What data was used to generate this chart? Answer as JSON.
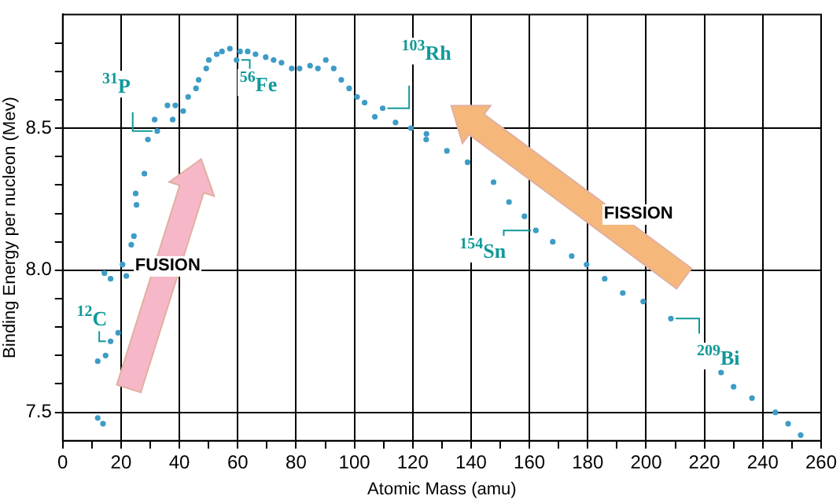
{
  "chart_data": {
    "type": "scatter",
    "xlabel": "Atomic Mass (amu)",
    "ylabel": "Binding Energy per nucleon (Mev)",
    "x": [
      12,
      13.8,
      12,
      14.7,
      16.4,
      19,
      14.3,
      16.4,
      20.5,
      21.8,
      23.5,
      24.4,
      25.3,
      25,
      28,
      29.2,
      32.4,
      31.5,
      35.9,
      38.6,
      41.3,
      37.7,
      43,
      45.7,
      46.6,
      49.2,
      50.1,
      52.8,
      54.6,
      57.3,
      59.6,
      60.8,
      63.4,
      66.1,
      69.6,
      72.3,
      75,
      78.5,
      81.2,
      84.8,
      87.5,
      90.2,
      92.9,
      95.5,
      98.2,
      100.9,
      103.5,
      109.7,
      107,
      114.1,
      119.4,
      124.7,
      124.6,
      131.7,
      138.8,
      147.7,
      153,
      158.3,
      162.2,
      168,
      174.5,
      179.6,
      185.8,
      192,
      199,
      208.5,
      225.7,
      230,
      236.3,
      244.3,
      248.7,
      253
    ],
    "series": [
      {
        "color": "#3d9cc6",
        "values": [
          7.48,
          7.46,
          7.68,
          7.7,
          7.75,
          7.78,
          7.99,
          7.97,
          8.02,
          7.98,
          8.09,
          8.12,
          8.23,
          8.27,
          8.34,
          8.46,
          8.49,
          8.53,
          8.58,
          8.58,
          8.56,
          8.53,
          8.61,
          8.64,
          8.67,
          8.71,
          8.74,
          8.76,
          8.77,
          8.78,
          8.74,
          8.77,
          8.77,
          8.76,
          8.75,
          8.74,
          8.73,
          8.71,
          8.71,
          8.72,
          8.71,
          8.74,
          8.71,
          8.67,
          8.64,
          8.61,
          8.59,
          8.57,
          8.54,
          8.52,
          8.5,
          8.48,
          8.46,
          8.42,
          8.38,
          8.31,
          8.24,
          8.19,
          8.14,
          8.1,
          8.05,
          8.02,
          7.97,
          7.92,
          7.89,
          7.83,
          7.64,
          7.59,
          7.55,
          7.5,
          7.46,
          7.42
        ]
      }
    ],
    "xlim": [
      0,
      260
    ],
    "ylim": [
      7.4,
      8.9
    ],
    "xticks": [
      0,
      {
        "value": 10,
        "label": null
      },
      20,
      {
        "value": 30,
        "label": null
      },
      40,
      {
        "value": 50,
        "label": null
      },
      60,
      {
        "value": 70,
        "label": null
      },
      80,
      {
        "value": 90,
        "label": null
      },
      100,
      {
        "value": 110,
        "label": null
      },
      120,
      {
        "value": 130,
        "label": null
      },
      140,
      {
        "value": 150,
        "label": null
      },
      160,
      {
        "value": 170,
        "label": null
      },
      180,
      {
        "value": 190,
        "label": null
      },
      200,
      {
        "value": 210,
        "label": null
      },
      220,
      {
        "value": 230,
        "label": null
      },
      240,
      {
        "value": 250,
        "label": null
      },
      260
    ],
    "yticks": [
      {
        "value": 7.5,
        "label": "7.5"
      },
      {
        "value": 7.6,
        "label": null
      },
      {
        "value": 7.7,
        "label": null
      },
      {
        "value": 7.8,
        "label": null
      },
      {
        "value": 7.9,
        "label": null
      },
      {
        "value": 8,
        "label": "8.0"
      },
      {
        "value": 8.1,
        "label": null
      },
      {
        "value": 8.2,
        "label": null
      },
      {
        "value": 8.3,
        "label": null
      },
      {
        "value": 8.4,
        "label": null
      },
      {
        "value": 8.5,
        "label": "8.5"
      },
      {
        "value": 8.6,
        "label": null
      },
      {
        "value": 8.7,
        "label": null
      },
      {
        "value": 8.8,
        "label": null
      }
    ],
    "grid": true,
    "legend": false,
    "marker": "circle",
    "annotations": [
      {
        "text": "$^{12}$C",
        "x": 16.4,
        "y": 7.75
      },
      {
        "text": "$^{31}$P",
        "x": 32.4,
        "y": 8.49
      },
      {
        "text": "$^{56}$Fe",
        "x": 59.6,
        "y": 8.74
      },
      {
        "text": "$^{103}$Rh",
        "x": 109.7,
        "y": 8.57
      },
      {
        "text": "$^{154}$Sn",
        "x": 162.2,
        "y": 8.14
      },
      {
        "text": "$^{209}$Bi",
        "x": 208.5,
        "y": 7.83
      },
      "FUSION",
      "FISSION"
    ]
  }
}
